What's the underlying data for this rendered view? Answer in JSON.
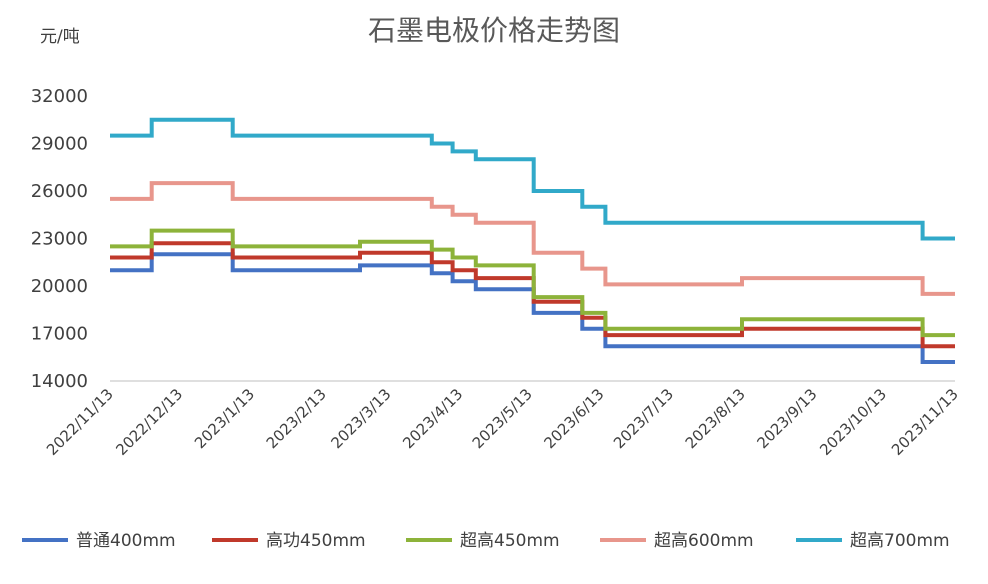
{
  "chart_data": {
    "type": "line",
    "title": "石墨电极价格走势图",
    "ylabel": "元/吨",
    "ylim": [
      14000,
      32000
    ],
    "yticks": [
      "32000",
      "29000",
      "26000",
      "23000",
      "20000",
      "17000",
      "14000"
    ],
    "x_range": [
      "2022-11-13",
      "2023-11-13"
    ],
    "xticks": [
      {
        "date": "2022-11-13",
        "label": "2022/11/13"
      },
      {
        "date": "2022-12-13",
        "label": "2022/12/13"
      },
      {
        "date": "2023-01-13",
        "label": "2023/1/13"
      },
      {
        "date": "2023-02-13",
        "label": "2023/2/13"
      },
      {
        "date": "2023-03-13",
        "label": "2023/3/13"
      },
      {
        "date": "2023-04-13",
        "label": "2023/4/13"
      },
      {
        "date": "2023-05-13",
        "label": "2023/5/13"
      },
      {
        "date": "2023-06-13",
        "label": "2023/6/13"
      },
      {
        "date": "2023-07-13",
        "label": "2023/7/13"
      },
      {
        "date": "2023-08-13",
        "label": "2023/8/13"
      },
      {
        "date": "2023-09-13",
        "label": "2023/9/13"
      },
      {
        "date": "2023-10-13",
        "label": "2023/10/13"
      },
      {
        "date": "2023-11-13",
        "label": "2023/11/13"
      }
    ],
    "grid": false,
    "legend": "bottom",
    "series": [
      {
        "name": "普通400mm",
        "color": "#4472c4",
        "points": [
          [
            "2022-11-13",
            21000
          ],
          [
            "2022-12-01",
            21000
          ],
          [
            "2022-12-01",
            22000
          ],
          [
            "2023-01-05",
            22000
          ],
          [
            "2023-01-05",
            21000
          ],
          [
            "2023-03-01",
            21000
          ],
          [
            "2023-03-01",
            21300
          ],
          [
            "2023-04-01",
            21300
          ],
          [
            "2023-04-01",
            20800
          ],
          [
            "2023-04-10",
            20800
          ],
          [
            "2023-04-10",
            20300
          ],
          [
            "2023-04-20",
            20300
          ],
          [
            "2023-04-20",
            19800
          ],
          [
            "2023-05-15",
            19800
          ],
          [
            "2023-05-15",
            18300
          ],
          [
            "2023-06-05",
            18300
          ],
          [
            "2023-06-05",
            17300
          ],
          [
            "2023-06-15",
            17300
          ],
          [
            "2023-06-15",
            16200
          ],
          [
            "2023-10-30",
            16200
          ],
          [
            "2023-10-30",
            15200
          ],
          [
            "2023-11-13",
            15200
          ]
        ]
      },
      {
        "name": "高功450mm",
        "color": "#c0392b",
        "points": [
          [
            "2022-11-13",
            21800
          ],
          [
            "2022-12-01",
            21800
          ],
          [
            "2022-12-01",
            22700
          ],
          [
            "2023-01-05",
            22700
          ],
          [
            "2023-01-05",
            21800
          ],
          [
            "2023-03-01",
            21800
          ],
          [
            "2023-03-01",
            22100
          ],
          [
            "2023-04-01",
            22100
          ],
          [
            "2023-04-01",
            21500
          ],
          [
            "2023-04-10",
            21500
          ],
          [
            "2023-04-10",
            21000
          ],
          [
            "2023-04-20",
            21000
          ],
          [
            "2023-04-20",
            20500
          ],
          [
            "2023-05-15",
            20500
          ],
          [
            "2023-05-15",
            19000
          ],
          [
            "2023-06-05",
            19000
          ],
          [
            "2023-06-05",
            18000
          ],
          [
            "2023-06-15",
            18000
          ],
          [
            "2023-06-15",
            16900
          ],
          [
            "2023-08-13",
            16900
          ],
          [
            "2023-08-13",
            17300
          ],
          [
            "2023-10-30",
            17300
          ],
          [
            "2023-10-30",
            16200
          ],
          [
            "2023-11-13",
            16200
          ]
        ]
      },
      {
        "name": "超高450mm",
        "color": "#8db33a",
        "points": [
          [
            "2022-11-13",
            22500
          ],
          [
            "2022-12-01",
            22500
          ],
          [
            "2022-12-01",
            23500
          ],
          [
            "2023-01-05",
            23500
          ],
          [
            "2023-01-05",
            22500
          ],
          [
            "2023-03-01",
            22500
          ],
          [
            "2023-03-01",
            22800
          ],
          [
            "2023-04-01",
            22800
          ],
          [
            "2023-04-01",
            22300
          ],
          [
            "2023-04-10",
            22300
          ],
          [
            "2023-04-10",
            21800
          ],
          [
            "2023-04-20",
            21800
          ],
          [
            "2023-04-20",
            21300
          ],
          [
            "2023-05-15",
            21300
          ],
          [
            "2023-05-15",
            19300
          ],
          [
            "2023-06-05",
            19300
          ],
          [
            "2023-06-05",
            18300
          ],
          [
            "2023-06-15",
            18300
          ],
          [
            "2023-06-15",
            17300
          ],
          [
            "2023-08-13",
            17300
          ],
          [
            "2023-08-13",
            17900
          ],
          [
            "2023-10-30",
            17900
          ],
          [
            "2023-10-30",
            16900
          ],
          [
            "2023-11-13",
            16900
          ]
        ]
      },
      {
        "name": "超高600mm",
        "color": "#e8968c",
        "points": [
          [
            "2022-11-13",
            25500
          ],
          [
            "2022-12-01",
            25500
          ],
          [
            "2022-12-01",
            26500
          ],
          [
            "2023-01-05",
            26500
          ],
          [
            "2023-01-05",
            25500
          ],
          [
            "2023-04-01",
            25500
          ],
          [
            "2023-04-01",
            25000
          ],
          [
            "2023-04-10",
            25000
          ],
          [
            "2023-04-10",
            24500
          ],
          [
            "2023-04-20",
            24500
          ],
          [
            "2023-04-20",
            24000
          ],
          [
            "2023-05-15",
            24000
          ],
          [
            "2023-05-15",
            22100
          ],
          [
            "2023-06-05",
            22100
          ],
          [
            "2023-06-05",
            21100
          ],
          [
            "2023-06-15",
            21100
          ],
          [
            "2023-06-15",
            20100
          ],
          [
            "2023-08-13",
            20100
          ],
          [
            "2023-08-13",
            20500
          ],
          [
            "2023-10-30",
            20500
          ],
          [
            "2023-10-30",
            19500
          ],
          [
            "2023-11-13",
            19500
          ]
        ]
      },
      {
        "name": "超高700mm",
        "color": "#31a9c9",
        "points": [
          [
            "2022-11-13",
            29500
          ],
          [
            "2022-12-01",
            29500
          ],
          [
            "2022-12-01",
            30500
          ],
          [
            "2023-01-05",
            30500
          ],
          [
            "2023-01-05",
            29500
          ],
          [
            "2023-04-01",
            29500
          ],
          [
            "2023-04-01",
            29000
          ],
          [
            "2023-04-10",
            29000
          ],
          [
            "2023-04-10",
            28500
          ],
          [
            "2023-04-20",
            28500
          ],
          [
            "2023-04-20",
            28000
          ],
          [
            "2023-05-15",
            28000
          ],
          [
            "2023-05-15",
            26000
          ],
          [
            "2023-06-05",
            26000
          ],
          [
            "2023-06-05",
            25000
          ],
          [
            "2023-06-15",
            25000
          ],
          [
            "2023-06-15",
            24000
          ],
          [
            "2023-10-30",
            24000
          ],
          [
            "2023-10-30",
            23000
          ],
          [
            "2023-11-13",
            23000
          ]
        ]
      }
    ]
  }
}
